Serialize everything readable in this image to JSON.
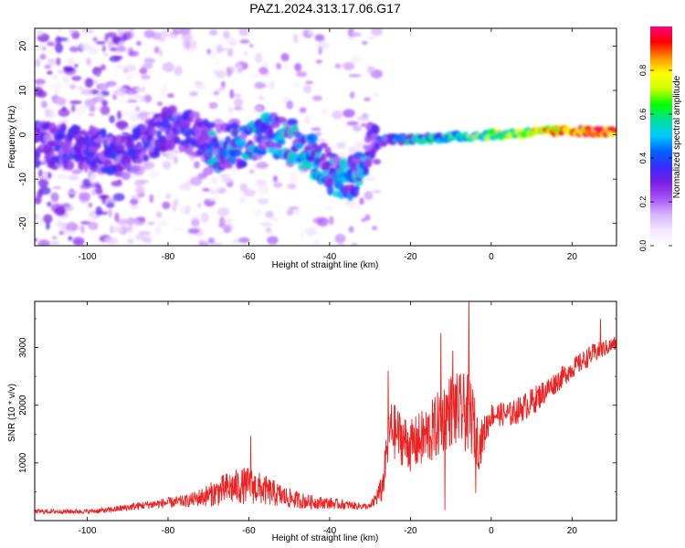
{
  "title": "PAZ1.2024.313.17.06.G17",
  "colors": {
    "snr_line": "#ee2222",
    "axis": "#000000",
    "colorbar_stops": [
      "#ffffff",
      "#f3e6ff",
      "#d9b3ff",
      "#a855f7",
      "#7b1fe0",
      "#3b2bff",
      "#0060ff",
      "#00c8ff",
      "#00e0a0",
      "#00ff00",
      "#c8ff00",
      "#ffff00",
      "#ff9000",
      "#ff0000",
      "#ff0080"
    ]
  },
  "chart_data": [
    {
      "type": "heatmap",
      "xlabel": "Height of straight line (km)",
      "ylabel": "Frequency (Hz)",
      "xlim": [
        -113,
        31
      ],
      "ylim": [
        -25,
        24
      ],
      "x_ticks": [
        -100,
        -80,
        -60,
        -40,
        -20,
        0,
        20
      ],
      "x_tick_labels": [
        "-100",
        "-80",
        "-60",
        "-40",
        "-20",
        "0",
        "20"
      ],
      "y_ticks": [
        -20,
        -10,
        0,
        10,
        20
      ],
      "y_tick_labels": [
        "-20",
        "-10",
        "0",
        "10",
        "20"
      ],
      "colorbar": {
        "label": "Normalized spectral amplitude",
        "range": [
          0,
          1
        ],
        "ticks": [
          0.0,
          0.2,
          0.4,
          0.6,
          0.8
        ],
        "tick_labels": [
          "0.0",
          "0.2",
          "0.4",
          "0.6",
          "0.8"
        ]
      },
      "ridge": [
        {
          "x": -112,
          "f": -2
        },
        {
          "x": -100,
          "f": -3
        },
        {
          "x": -90,
          "f": -5
        },
        {
          "x": -80,
          "f": 2
        },
        {
          "x": -75,
          "f": 1
        },
        {
          "x": -68,
          "f": -3
        },
        {
          "x": -60,
          "f": -2
        },
        {
          "x": -55,
          "f": 0
        },
        {
          "x": -50,
          "f": -1
        },
        {
          "x": -45,
          "f": -4
        },
        {
          "x": -40,
          "f": -8
        },
        {
          "x": -35,
          "f": -11
        },
        {
          "x": -30,
          "f": -2
        },
        {
          "x": -25,
          "f": -1
        },
        {
          "x": -20,
          "f": -1
        },
        {
          "x": -10,
          "f": -0.5
        },
        {
          "x": 0,
          "f": 0
        },
        {
          "x": 10,
          "f": 0.5
        },
        {
          "x": 20,
          "f": 1
        },
        {
          "x": 30,
          "f": 0.5
        }
      ]
    },
    {
      "type": "line",
      "xlabel": "Height of straight line (km)",
      "ylabel": "SNR (10 * v/v)",
      "xlim": [
        -113,
        31
      ],
      "ylim": [
        0,
        3800
      ],
      "x_ticks": [
        -100,
        -80,
        -60,
        -40,
        -20,
        0,
        20
      ],
      "x_tick_labels": [
        "-100",
        "-80",
        "-60",
        "-40",
        "-20",
        "0",
        "20"
      ],
      "y_ticks": [
        1000,
        2000,
        3000
      ],
      "y_tick_labels": [
        "1000",
        "2000",
        "3000"
      ],
      "series": [
        {
          "envelope": [
            {
              "x": -113,
              "base": 150,
              "amp": 80
            },
            {
              "x": -100,
              "base": 150,
              "amp": 80
            },
            {
              "x": -95,
              "base": 170,
              "amp": 100
            },
            {
              "x": -85,
              "base": 260,
              "amp": 150
            },
            {
              "x": -75,
              "base": 320,
              "amp": 220
            },
            {
              "x": -70,
              "base": 400,
              "amp": 400
            },
            {
              "x": -65,
              "base": 500,
              "amp": 600
            },
            {
              "x": -60,
              "base": 550,
              "amp": 650
            },
            {
              "x": -55,
              "base": 450,
              "amp": 500
            },
            {
              "x": -50,
              "base": 350,
              "amp": 350
            },
            {
              "x": -45,
              "base": 300,
              "amp": 250
            },
            {
              "x": -40,
              "base": 280,
              "amp": 200
            },
            {
              "x": -35,
              "base": 250,
              "amp": 150
            },
            {
              "x": -30,
              "base": 230,
              "amp": 100
            },
            {
              "x": -27,
              "base": 500,
              "amp": 500
            },
            {
              "x": -25,
              "base": 1500,
              "amp": 1000
            },
            {
              "x": -20,
              "base": 1200,
              "amp": 900
            },
            {
              "x": -15,
              "base": 1400,
              "amp": 1100
            },
            {
              "x": -10,
              "base": 1800,
              "amp": 1300
            },
            {
              "x": -5,
              "base": 1700,
              "amp": 1400
            },
            {
              "x": -3,
              "base": 1200,
              "amp": 800
            },
            {
              "x": 0,
              "base": 1800,
              "amp": 400
            },
            {
              "x": 5,
              "base": 1800,
              "amp": 450
            },
            {
              "x": 10,
              "base": 2000,
              "amp": 500
            },
            {
              "x": 15,
              "base": 2300,
              "amp": 400
            },
            {
              "x": 20,
              "base": 2600,
              "amp": 350
            },
            {
              "x": 25,
              "base": 2850,
              "amp": 350
            },
            {
              "x": 31,
              "base": 3050,
              "amp": 250
            }
          ],
          "peaks": [
            {
              "x": -59.5,
              "y": 1470
            },
            {
              "x": -25.5,
              "y": 2600
            },
            {
              "x": -12.5,
              "y": 3250
            },
            {
              "x": -9.5,
              "y": 2950
            },
            {
              "x": -5.5,
              "y": 3850
            },
            {
              "x": 27,
              "y": 3500
            }
          ],
          "troughs": [
            {
              "x": -11.5,
              "y": 180
            },
            {
              "x": -3.8,
              "y": 480
            }
          ]
        }
      ]
    }
  ]
}
